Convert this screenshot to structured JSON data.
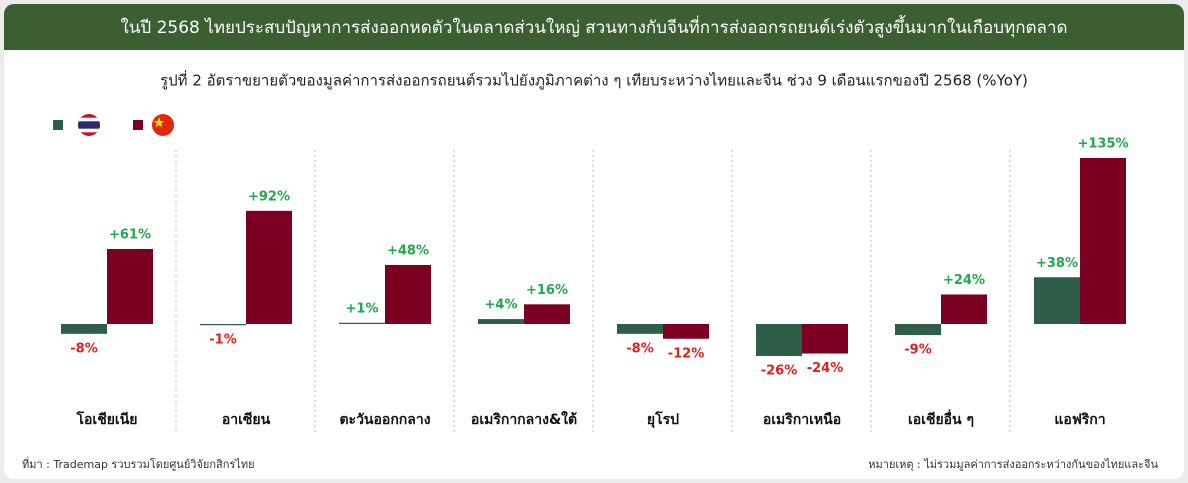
{
  "chart_data": {
    "type": "bar",
    "title": "ในปี 2568 ไทยประสบปัญหาการส่งออกหดตัวในตลาดส่วนใหญ่ สวนทางกับจีนที่การส่งออกรถยนต์เร่งตัวสูงขึ้นมากในเกือบทุกตลาด",
    "subtitle": "รูปที่ 2 อัตราขยายตัวของมูลค่าการส่งออกรถยนต์รวมไปยังภูมิภาคต่าง ๆ เทียบระหว่างไทยและจีน ช่วง 9 เดือนแรกของปี 2568 (%YoY)",
    "categories": [
      "โอเชียเนีย",
      "อาเซียน",
      "ตะวันออกกลาง",
      "อเมริกากลาง&ใต้",
      "ยุโรป",
      "อเมริกาเหนือ",
      "เอเชียอื่น ๆ",
      "แอฟริกา"
    ],
    "series": [
      {
        "color": "#2f5e48",
        "values": [
          -8,
          -1,
          1,
          4,
          -8,
          -26,
          -9,
          38
        ],
        "value_labels": [
          "-8%",
          "-1%",
          "+1%",
          "+4%",
          "-8%",
          "-26%",
          "-9%",
          "+38%"
        ]
      },
      {
        "color": "#7b0022",
        "values": [
          61,
          92,
          48,
          16,
          -12,
          -24,
          24,
          135
        ],
        "value_labels": [
          "+61%",
          "+92%",
          "+48%",
          "+16%",
          "-12%",
          "-24%",
          "+24%",
          "+135%"
        ]
      }
    ],
    "source": "ที่มา : Trademap รวบรวมโดยศูนย์วิจัยกสิกรไทย",
    "note": "หมายเหตุ : ไม่รวมมูลค่าการส่งออกระหว่างกันของไทยและจีน"
  }
}
